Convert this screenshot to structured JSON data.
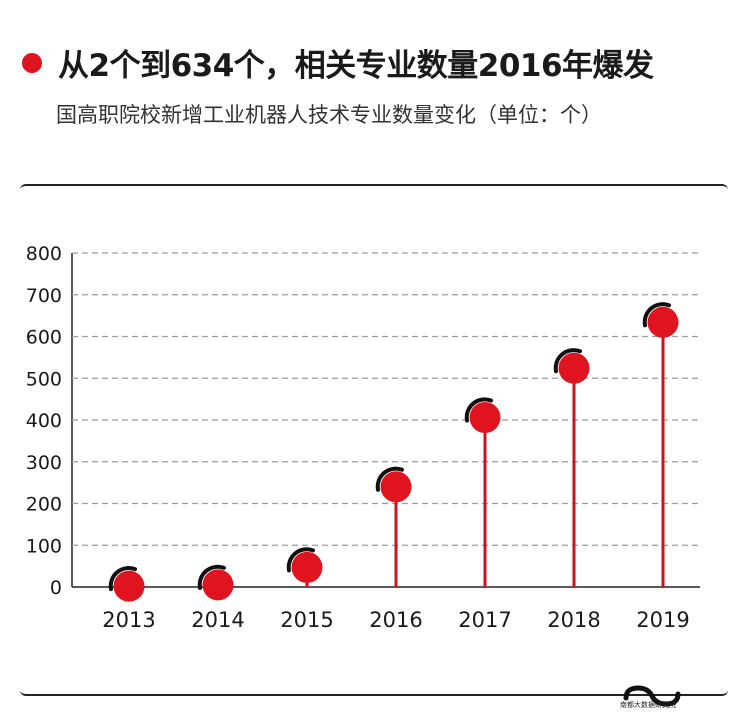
{
  "header": {
    "title": "从2个到634个，相关专业数量2016年爆发",
    "subtitle": "国高职院校新增工业机器人技术专业数量变化（单位：个）"
  },
  "brand": {
    "name": "南都大数据研究院"
  },
  "colors": {
    "accent": "#e0141e",
    "stem": "#c8141e",
    "grid": "#9a9a9a",
    "axis": "#222222"
  },
  "chart_data": {
    "type": "lollipop",
    "title": "国高职院校新增工业机器人技术专业数量变化（单位：个）",
    "categories": [
      "2013",
      "2014",
      "2015",
      "2016",
      "2017",
      "2018",
      "2019"
    ],
    "values": [
      2,
      5,
      47,
      240,
      406,
      524,
      634
    ],
    "yticks": [
      "0",
      "100",
      "200",
      "300",
      "400",
      "500",
      "600",
      "700",
      "800"
    ],
    "ylim": [
      0,
      800
    ],
    "grid": true,
    "xlabel": "",
    "ylabel": ""
  }
}
